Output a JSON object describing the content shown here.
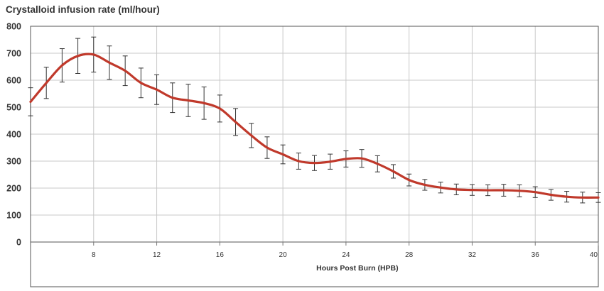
{
  "chart_data": {
    "type": "line",
    "title": "Crystalloid infusion rate (ml/hour)",
    "xlabel": "Hours Post Burn (HPB)",
    "ylabel": "",
    "xlim": [
      4,
      40
    ],
    "ylim": [
      0,
      800
    ],
    "xticks": [
      8,
      12,
      16,
      20,
      24,
      28,
      32,
      36,
      40
    ],
    "yticks": [
      0,
      100,
      200,
      300,
      400,
      500,
      600,
      700,
      800
    ],
    "grid": true,
    "legend": "none",
    "series": [
      {
        "color": "#c0392b",
        "points": [
          {
            "x": 4,
            "y": 520,
            "err": 52
          },
          {
            "x": 5,
            "y": 590,
            "err": 58
          },
          {
            "x": 6,
            "y": 655,
            "err": 62
          },
          {
            "x": 7,
            "y": 690,
            "err": 65
          },
          {
            "x": 8,
            "y": 695,
            "err": 65
          },
          {
            "x": 9,
            "y": 665,
            "err": 62
          },
          {
            "x": 10,
            "y": 635,
            "err": 55
          },
          {
            "x": 11,
            "y": 590,
            "err": 55
          },
          {
            "x": 12,
            "y": 565,
            "err": 55
          },
          {
            "x": 13,
            "y": 535,
            "err": 55
          },
          {
            "x": 14,
            "y": 525,
            "err": 60
          },
          {
            "x": 15,
            "y": 515,
            "err": 60
          },
          {
            "x": 16,
            "y": 495,
            "err": 50
          },
          {
            "x": 17,
            "y": 445,
            "err": 50
          },
          {
            "x": 18,
            "y": 395,
            "err": 45
          },
          {
            "x": 19,
            "y": 350,
            "err": 40
          },
          {
            "x": 20,
            "y": 325,
            "err": 35
          },
          {
            "x": 21,
            "y": 300,
            "err": 30
          },
          {
            "x": 22,
            "y": 293,
            "err": 28
          },
          {
            "x": 23,
            "y": 298,
            "err": 28
          },
          {
            "x": 24,
            "y": 308,
            "err": 30
          },
          {
            "x": 25,
            "y": 310,
            "err": 33
          },
          {
            "x": 26,
            "y": 290,
            "err": 30
          },
          {
            "x": 27,
            "y": 262,
            "err": 25
          },
          {
            "x": 28,
            "y": 230,
            "err": 22
          },
          {
            "x": 29,
            "y": 212,
            "err": 20
          },
          {
            "x": 30,
            "y": 202,
            "err": 20
          },
          {
            "x": 31,
            "y": 195,
            "err": 20
          },
          {
            "x": 32,
            "y": 193,
            "err": 20
          },
          {
            "x": 33,
            "y": 192,
            "err": 20
          },
          {
            "x": 34,
            "y": 192,
            "err": 22
          },
          {
            "x": 35,
            "y": 190,
            "err": 22
          },
          {
            "x": 36,
            "y": 185,
            "err": 20
          },
          {
            "x": 37,
            "y": 175,
            "err": 20
          },
          {
            "x": 38,
            "y": 168,
            "err": 20
          },
          {
            "x": 39,
            "y": 165,
            "err": 20
          },
          {
            "x": 40,
            "y": 165,
            "err": 18
          }
        ]
      }
    ]
  }
}
